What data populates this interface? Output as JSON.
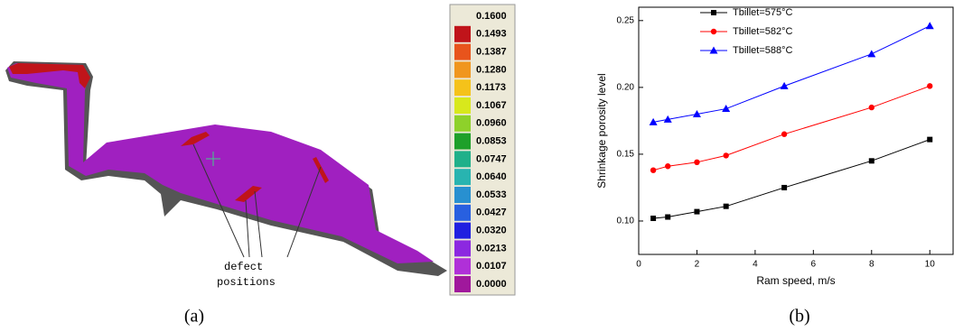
{
  "caption_a": "(a)",
  "caption_b": "(b)",
  "annotation": [
    "defect",
    "positions"
  ],
  "colorbar": {
    "levels": [
      {
        "value": 0.16,
        "label": "0.1600"
      },
      {
        "value": 0.1493,
        "label": "0.1493"
      },
      {
        "value": 0.1387,
        "label": "0.1387"
      },
      {
        "value": 0.128,
        "label": "0.1280"
      },
      {
        "value": 0.1173,
        "label": "0.1173"
      },
      {
        "value": 0.1067,
        "label": "0.1067"
      },
      {
        "value": 0.096,
        "label": "0.0960"
      },
      {
        "value": 0.0853,
        "label": "0.0853"
      },
      {
        "value": 0.0747,
        "label": "0.0747"
      },
      {
        "value": 0.064,
        "label": "0.0640"
      },
      {
        "value": 0.0533,
        "label": "0.0533"
      },
      {
        "value": 0.0427,
        "label": "0.0427"
      },
      {
        "value": 0.032,
        "label": "0.0320"
      },
      {
        "value": 0.0213,
        "label": "0.0213"
      },
      {
        "value": 0.0107,
        "label": "0.0107"
      },
      {
        "value": 0,
        "label": "0.0000"
      }
    ],
    "colors": [
      "#c0141a",
      "#e8541c",
      "#f0961e",
      "#f5c21a",
      "#d8e81c",
      "#8ed12a",
      "#1ea02a",
      "#20b08a",
      "#28b4b0",
      "#2890d0",
      "#2860e0",
      "#2020e0",
      "#8c28e0",
      "#b030d8",
      "#a0189c"
    ]
  },
  "chart_data": {
    "type": "line",
    "x_label": "Ram speed, m/s",
    "y_label": "Shrinkage porosity level",
    "x": [
      0.5,
      1,
      2,
      3,
      5,
      8,
      10
    ],
    "series": [
      {
        "name": "Tbillet=575°C",
        "color": "#000000",
        "marker": "square",
        "values": [
          0.102,
          0.103,
          0.107,
          0.111,
          0.125,
          0.145,
          0.161
        ]
      },
      {
        "name": "Tbillet=582°C",
        "color": "#ff0000",
        "marker": "circle",
        "values": [
          0.138,
          0.141,
          0.144,
          0.149,
          0.165,
          0.185,
          0.201
        ]
      },
      {
        "name": "Tbillet=588°C",
        "color": "#0000ff",
        "marker": "triangle",
        "values": [
          0.174,
          0.176,
          0.18,
          0.184,
          0.201,
          0.225,
          0.246
        ]
      }
    ],
    "xlim": [
      0,
      10.8
    ],
    "ylim": [
      0.075,
      0.26
    ],
    "xticks": [
      0,
      2,
      4,
      6,
      8,
      10
    ],
    "yticks": [
      {
        "value": 0.1,
        "label": "0.10"
      },
      {
        "value": 0.15,
        "label": "0.15"
      },
      {
        "value": 0.2,
        "label": "0.20"
      },
      {
        "value": 0.25,
        "label": "0.25"
      }
    ],
    "legend": "upper-left"
  }
}
